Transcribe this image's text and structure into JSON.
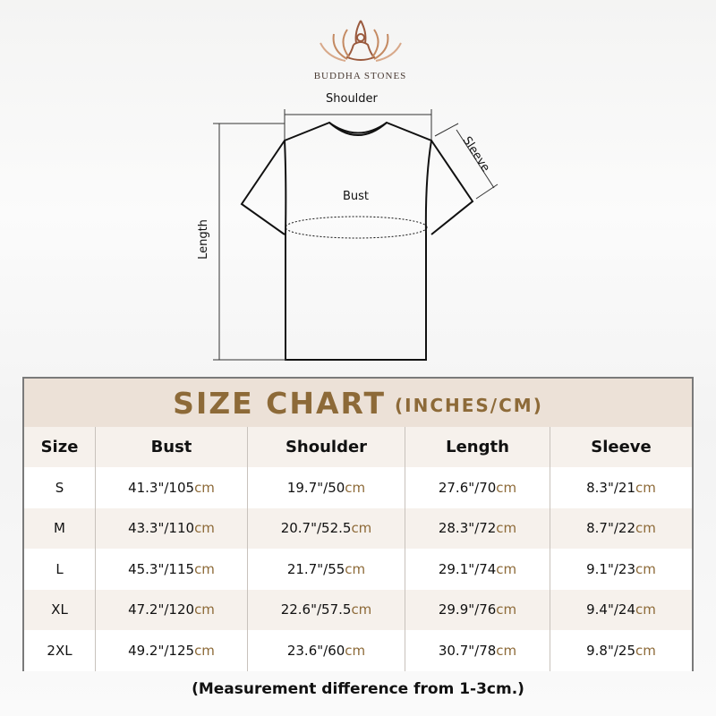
{
  "brand": {
    "name": "BUDDHA STONES"
  },
  "diagram": {
    "shoulder": "Shoulder",
    "sleeve": "Sleeve",
    "bust": "Bust",
    "length": "Length"
  },
  "chart": {
    "title": "SIZE CHART",
    "unit": "(INCHES/CM)",
    "headers": [
      "Size",
      "Bust",
      "Shoulder",
      "Length",
      "Sleeve"
    ],
    "cm_suffix": "cm",
    "rows": [
      {
        "size": "S",
        "bust": "41.3\"/105",
        "shoulder": "19.7\"/50",
        "length": "27.6\"/70",
        "sleeve": "8.3\"/21"
      },
      {
        "size": "M",
        "bust": "43.3\"/110",
        "shoulder": "20.7\"/52.5",
        "length": "28.3\"/72",
        "sleeve": "8.7\"/22"
      },
      {
        "size": "L",
        "bust": "45.3\"/115",
        "shoulder": "21.7\"/55",
        "length": "29.1\"/74",
        "sleeve": "9.1\"/23"
      },
      {
        "size": "XL",
        "bust": "47.2\"/120",
        "shoulder": "22.6\"/57.5",
        "length": "29.9\"/76",
        "sleeve": "9.4\"/24"
      },
      {
        "size": "2XL",
        "bust": "49.2\"/125",
        "shoulder": "23.6\"/60",
        "length": "30.7\"/78",
        "sleeve": "9.8\"/25"
      }
    ]
  },
  "note": "(Measurement difference from 1-3cm.)",
  "colors": {
    "accent": "#8d6a38",
    "header_bg": "#ece1d7",
    "alt_row": "#f6f1ec"
  }
}
